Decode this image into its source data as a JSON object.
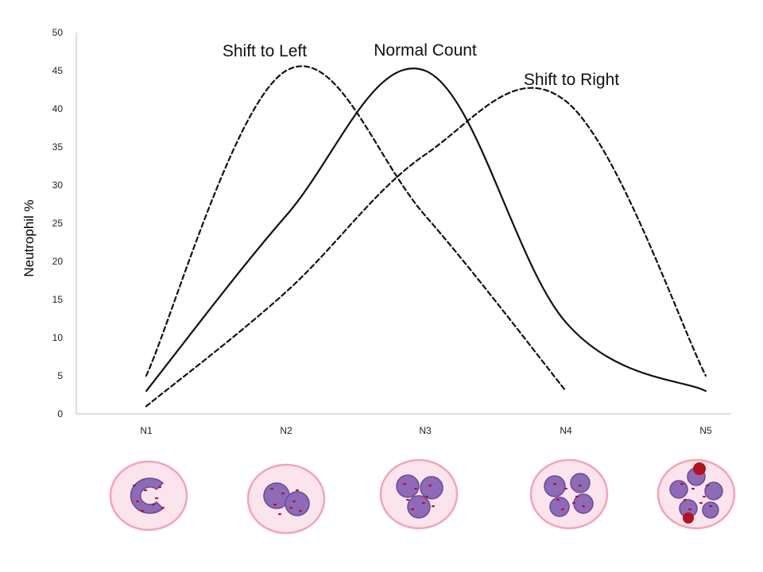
{
  "chart_data": {
    "type": "line",
    "title": "",
    "xlabel": "",
    "ylabel": "Neutrophil %",
    "categories": [
      "N1",
      "N2",
      "N3",
      "N4",
      "N5"
    ],
    "ylim": [
      0,
      50
    ],
    "yticks": [
      0,
      5,
      10,
      15,
      20,
      25,
      30,
      35,
      40,
      45,
      50
    ],
    "grid": false,
    "legend": "none (series labelled directly on the curves)",
    "series": [
      {
        "name": "Shift to Left",
        "style": "dashed",
        "color": "#111111",
        "values": [
          5,
          45,
          26,
          3,
          null
        ]
      },
      {
        "name": "Normal Count",
        "style": "solid",
        "color": "#111111",
        "values": [
          3,
          26,
          45,
          12,
          3
        ]
      },
      {
        "name": "Shift to Right",
        "style": "dashed",
        "color": "#111111",
        "values": [
          1,
          16,
          34,
          41,
          5
        ]
      }
    ],
    "cell_images": [
      "neutrophil with 1 lobe",
      "neutrophil with 2 lobes",
      "neutrophil with 3 lobes",
      "neutrophil with 4 lobes",
      "neutrophil with 5 lobes"
    ]
  },
  "colors": {
    "axis": "#bbbbbb",
    "cell_membrane": "#f4a3b8",
    "cell_cytoplasm": "#fbe4ec",
    "nucleus": "#8d6bb8",
    "nucleus_dark": "#6a4a96",
    "granule": "#b3121e"
  }
}
